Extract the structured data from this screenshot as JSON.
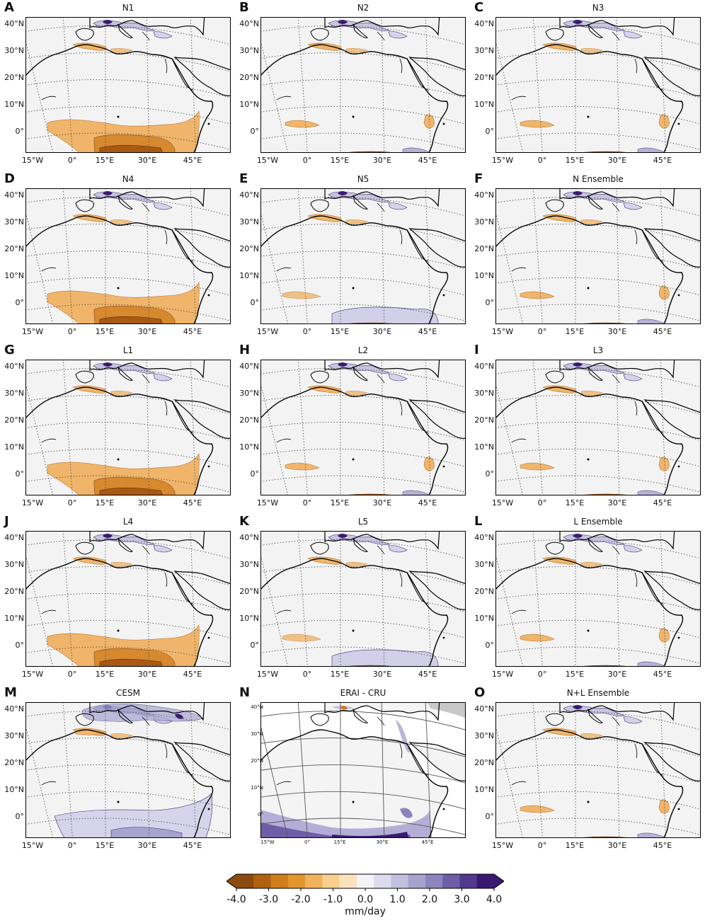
{
  "panels": [
    {
      "letter": "A",
      "title": "N1",
      "style": "dry-strong"
    },
    {
      "letter": "B",
      "title": "N2",
      "style": "light"
    },
    {
      "letter": "C",
      "title": "N3",
      "style": "light"
    },
    {
      "letter": "D",
      "title": "N4",
      "style": "dry-strong"
    },
    {
      "letter": "E",
      "title": "N5",
      "style": "wet-south"
    },
    {
      "letter": "F",
      "title": "N Ensemble",
      "style": "light"
    },
    {
      "letter": "G",
      "title": "L1",
      "style": "dry-strong"
    },
    {
      "letter": "H",
      "title": "L2",
      "style": "light"
    },
    {
      "letter": "I",
      "title": "L3",
      "style": "light"
    },
    {
      "letter": "J",
      "title": "L4",
      "style": "dry-strong"
    },
    {
      "letter": "K",
      "title": "L5",
      "style": "wet-south"
    },
    {
      "letter": "L",
      "title": "L Ensemble",
      "style": "light"
    },
    {
      "letter": "M",
      "title": "CESM",
      "style": "cesm"
    },
    {
      "letter": "N",
      "title": "ERAI - CRU",
      "style": "erai"
    },
    {
      "letter": "O",
      "title": "N+L Ensemble",
      "style": "light"
    }
  ],
  "lat_labels": [
    "40°N",
    "30°N",
    "20°N",
    "10°N",
    "0°"
  ],
  "lon_labels": [
    "15°W",
    "0°",
    "15°E",
    "30°E",
    "45°E"
  ],
  "colorbar": {
    "unit": "mm/day",
    "min": -4.0,
    "max": 4.0,
    "ticks": [
      "-4.0",
      "-3.0",
      "-2.0",
      "-1.0",
      "0.0",
      "1.0",
      "2.0",
      "3.0",
      "4.0"
    ],
    "colors": [
      "#8b4a0e",
      "#b0600e",
      "#cf7c1a",
      "#e3952e",
      "#f1b25a",
      "#f8cf8e",
      "#fbe2bd",
      "#f4f4f4",
      "#dcdcec",
      "#c2c0de",
      "#a7a3cf",
      "#8d84bd",
      "#6f5ea7",
      "#523a8f",
      "#3a1a70"
    ]
  },
  "colors": {
    "land": "#f3f3f3",
    "coast": "#000000",
    "grid": "#555555",
    "dry": "#f0b56a",
    "dry_strong": "#a85a14",
    "wet": "#a7a3cf",
    "wet_strong": "#3a1a70",
    "sea_erai": "#ffffff",
    "corner_gray": "#c8c8c8"
  }
}
